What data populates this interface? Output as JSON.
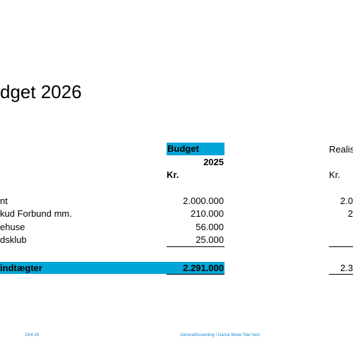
{
  "slide": {
    "title": "dget 2026",
    "header": {
      "budget_label": "Budget",
      "year": "2025",
      "currency": "Kr.",
      "realized_label": "Realis",
      "realized_currency": "Kr."
    },
    "rows": [
      {
        "label": "nt",
        "budget": "2.000.000",
        "realized": "2.0"
      },
      {
        "label": "kud Forbund mm.",
        "budget": "210.000",
        "realized": "2"
      },
      {
        "label": "ehuse",
        "budget": "56.000",
        "realized": ""
      },
      {
        "label": "dsklub",
        "budget": "25.000",
        "realized": ""
      }
    ],
    "total": {
      "label": "indtægter",
      "budget": "2.291.000",
      "realized": "2.3"
    },
    "accent_color": "#00a6d6"
  },
  "footer": {
    "date": "15/4-26",
    "center": "Generalforsamling i Dansk Metal Tele Vest"
  }
}
